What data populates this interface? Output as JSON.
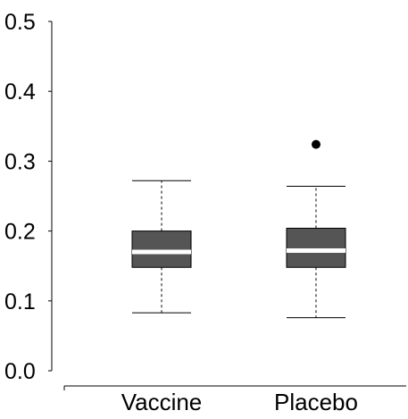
{
  "chart_data": {
    "type": "boxplot",
    "title": "",
    "xlabel": "",
    "ylabel": "",
    "ylim": [
      0.0,
      0.5
    ],
    "y_ticks": [
      0.0,
      0.1,
      0.2,
      0.3,
      0.4,
      0.5
    ],
    "y_tick_labels": [
      "0.0",
      "0.1",
      "0.2",
      "0.3",
      "0.4",
      "0.5"
    ],
    "categories": [
      "Vaccine",
      "Placebo"
    ],
    "boxes": [
      {
        "category": "Vaccine",
        "whisker_low": 0.083,
        "q1": 0.148,
        "median": 0.17,
        "q3": 0.2,
        "whisker_high": 0.272,
        "outliers": []
      },
      {
        "category": "Placebo",
        "whisker_low": 0.076,
        "q1": 0.148,
        "median": 0.172,
        "q3": 0.204,
        "whisker_high": 0.264,
        "outliers": [
          0.324
        ]
      }
    ],
    "colors": {
      "box_fill": "#555555",
      "median_line": "#ffffff",
      "whisker": "#000000",
      "outlier": "#000000",
      "axis": "#000000"
    },
    "grid": false,
    "legend": "none"
  }
}
